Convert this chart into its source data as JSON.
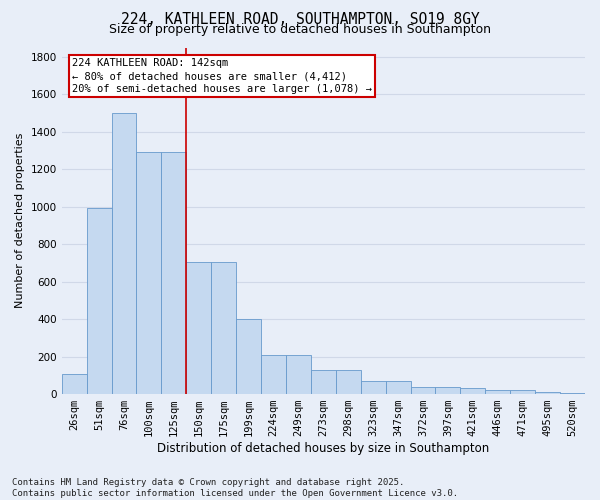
{
  "title_line1": "224, KATHLEEN ROAD, SOUTHAMPTON, SO19 8GY",
  "title_line2": "Size of property relative to detached houses in Southampton",
  "xlabel": "Distribution of detached houses by size in Southampton",
  "ylabel": "Number of detached properties",
  "categories": [
    "26sqm",
    "51sqm",
    "76sqm",
    "100sqm",
    "125sqm",
    "150sqm",
    "175sqm",
    "199sqm",
    "224sqm",
    "249sqm",
    "273sqm",
    "298sqm",
    "323sqm",
    "347sqm",
    "372sqm",
    "397sqm",
    "421sqm",
    "446sqm",
    "471sqm",
    "495sqm",
    "520sqm"
  ],
  "values": [
    105,
    995,
    1500,
    1290,
    1290,
    705,
    705,
    400,
    210,
    210,
    130,
    130,
    70,
    70,
    40,
    40,
    30,
    20,
    20,
    10,
    5
  ],
  "bar_color": "#c5d9f0",
  "bar_edge_color": "#6699cc",
  "background_color": "#e8eef8",
  "grid_color": "#d0d8e8",
  "annotation_text": "224 KATHLEEN ROAD: 142sqm\n← 80% of detached houses are smaller (4,412)\n20% of semi-detached houses are larger (1,078) →",
  "annotation_box_color": "#ffffff",
  "annotation_box_edge": "#cc0000",
  "vline_x": 4.5,
  "vline_color": "#cc0000",
  "ylim": [
    0,
    1850
  ],
  "yticks": [
    0,
    200,
    400,
    600,
    800,
    1000,
    1200,
    1400,
    1600,
    1800
  ],
  "footnote": "Contains HM Land Registry data © Crown copyright and database right 2025.\nContains public sector information licensed under the Open Government Licence v3.0.",
  "title_fontsize": 10.5,
  "subtitle_fontsize": 9,
  "xlabel_fontsize": 8.5,
  "ylabel_fontsize": 8,
  "tick_fontsize": 7.5,
  "annotation_fontsize": 7.5,
  "footnote_fontsize": 6.5
}
